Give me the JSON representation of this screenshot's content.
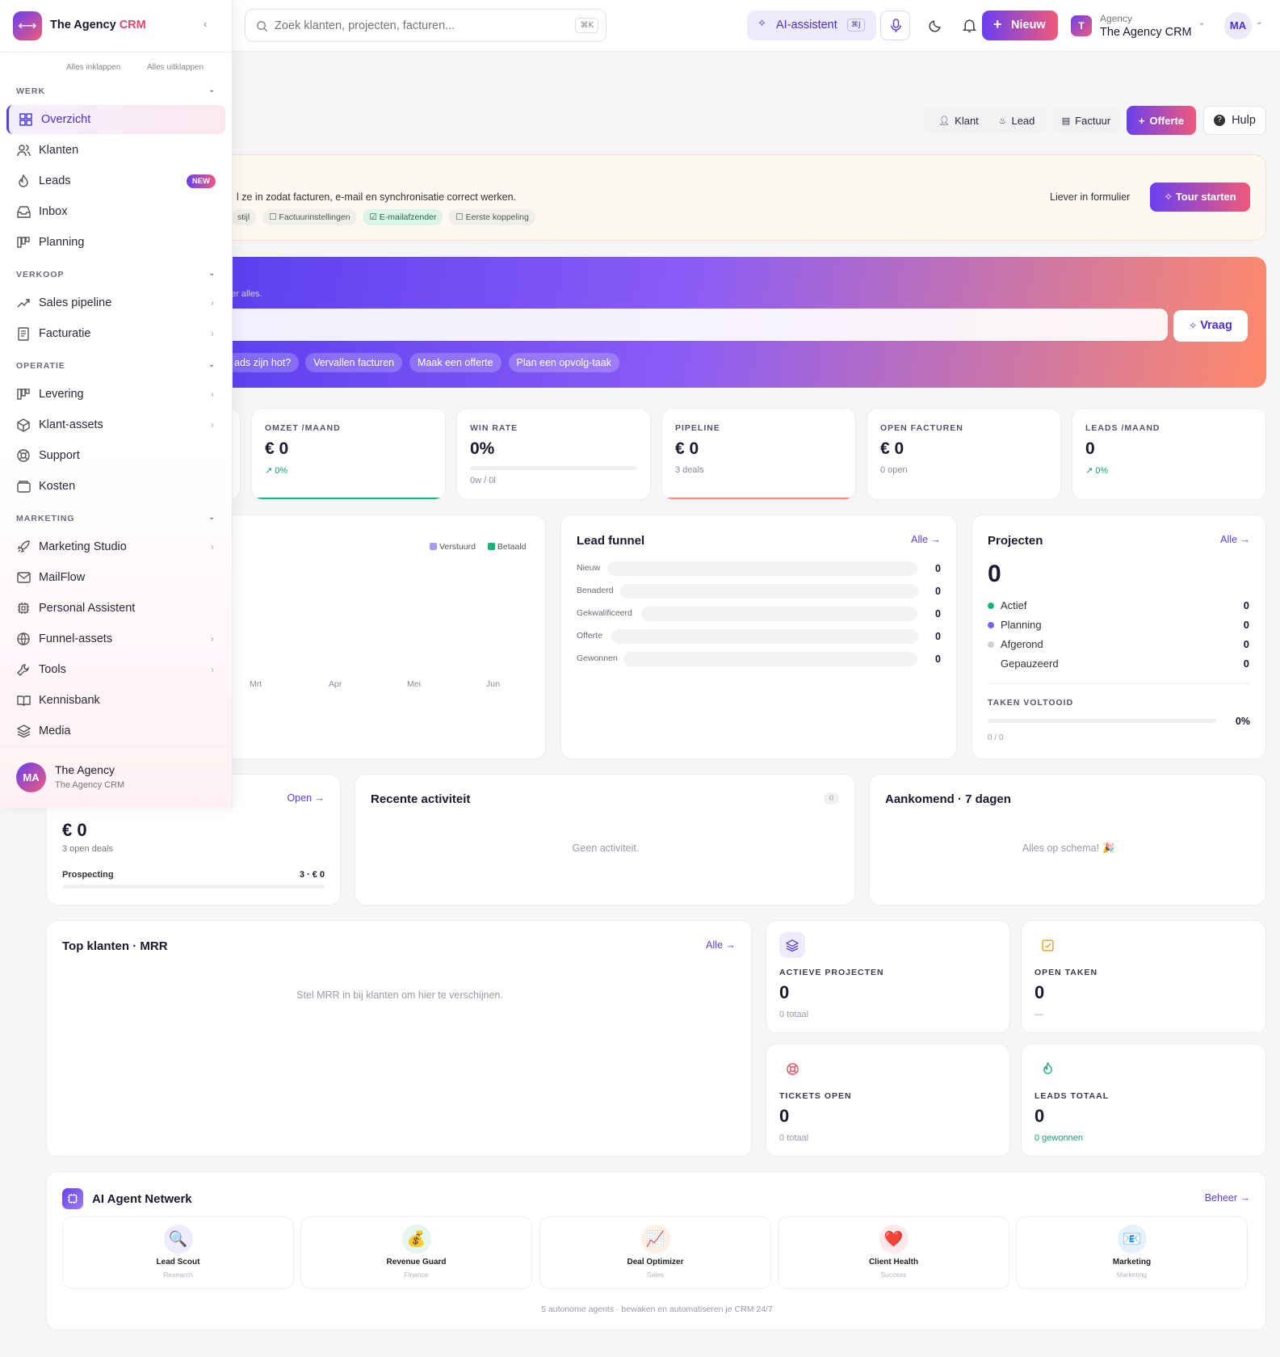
{
  "app": {
    "name": "The Agency",
    "name_accent": "CRM"
  },
  "search": {
    "placeholder": "Zoek klanten, projecten, facturen...",
    "shortcut": "⌘K"
  },
  "topbar": {
    "ai_label": "AI-assistent",
    "ai_shortcut": "⌘J",
    "new_label": "Nieuw",
    "workspace_label": "Agency",
    "workspace_name": "The Agency CRM",
    "workspace_initial": "T",
    "user_initials": "MA"
  },
  "sidebar": {
    "collapse_all": "Alles inklappen",
    "expand_all": "Alles uitklappen",
    "sections": {
      "werk": "WERK",
      "verkoop": "VERKOOP",
      "operatie": "OPERATIE",
      "marketing": "MARKETING"
    },
    "items": {
      "overzicht": "Overzicht",
      "klanten": "Klanten",
      "leads": "Leads",
      "leads_badge": "NEW",
      "inbox": "Inbox",
      "planning": "Planning",
      "sales_pipeline": "Sales pipeline",
      "facturatie": "Facturatie",
      "levering": "Levering",
      "klant_assets": "Klant-assets",
      "support": "Support",
      "kosten": "Kosten",
      "marketing_studio": "Marketing Studio",
      "mailflow": "MailFlow",
      "personal_assistent": "Personal Assistent",
      "funnel_assets": "Funnel-assets",
      "tools": "Tools",
      "kennisbank": "Kennisbank",
      "media": "Media"
    },
    "footer": {
      "initials": "MA",
      "name": "The Agency",
      "sub": "The Agency CRM"
    }
  },
  "quick_actions": {
    "klant": "Klant",
    "lead": "Lead",
    "factuur": "Factuur",
    "offerte": "Offerte",
    "hulp": "Hulp"
  },
  "onboarding": {
    "text": "l ze in zodat facturen, e-mail en synchronisatie correct werken.",
    "chips": [
      "stijl",
      "Factuurinstellingen",
      "E-mailafzender",
      "Eerste koppeling"
    ],
    "form_link": "Liever in formulier",
    "tour_button": "Tour starten"
  },
  "ai_banner": {
    "subtitle": "er alles.",
    "ask_button": "Vraag",
    "suggestions": [
      "ads zijn hot?",
      "Vervallen facturen",
      "Maak een offerte",
      "Plan een opvolg-taak"
    ]
  },
  "kpis": [
    {
      "label": "OMZET /MAAND",
      "value": "€ 0",
      "sub": "↗ 0%"
    },
    {
      "label": "WIN RATE",
      "value": "0%",
      "sub": "0w / 0l",
      "progress": 0
    },
    {
      "label": "PIPELINE",
      "value": "€ 0",
      "sub": "3 deals"
    },
    {
      "label": "OPEN FACTUREN",
      "value": "€ 0",
      "sub": "0 open"
    },
    {
      "label": "LEADS /MAAND",
      "value": "0",
      "sub": "↗ 0%"
    }
  ],
  "revenue_chart": {
    "legend": [
      "Verstuurd",
      "Betaald"
    ],
    "months": [
      "Mrt",
      "Apr",
      "Mei",
      "Jun"
    ],
    "colors": {
      "verstuurd": "#a99af5",
      "betaald": "#19b37a"
    }
  },
  "lead_funnel": {
    "title": "Lead funnel",
    "link": "Alle →",
    "stages": [
      {
        "label": "Nieuw",
        "count": "0"
      },
      {
        "label": "Benaderd",
        "count": "0"
      },
      {
        "label": "Gekwalificeerd",
        "count": "0"
      },
      {
        "label": "Offerte",
        "count": "0"
      },
      {
        "label": "Gewonnen",
        "count": "0"
      }
    ]
  },
  "projects": {
    "title": "Projecten",
    "link": "Alle →",
    "total": "0",
    "rows": [
      {
        "label": "Actief",
        "count": "0"
      },
      {
        "label": "Planning",
        "count": "0"
      },
      {
        "label": "Afgerond",
        "count": "0"
      },
      {
        "label": "Gepauzeerd",
        "count": "0"
      }
    ],
    "tasks_label": "TAKEN VOLTOOID",
    "tasks_pct": "0%",
    "tasks_count": "0 / 0"
  },
  "deals": {
    "link": "Open →",
    "value": "€ 0",
    "sub": "3 open deals",
    "stage_label": "Prospecting",
    "stage_value": "3 · € 0"
  },
  "activity": {
    "title": "Recente activiteit",
    "count": "0",
    "empty": "Geen activiteit."
  },
  "upcoming": {
    "title": "Aankomend · 7 dagen",
    "empty": "Alles op schema! 🎉"
  },
  "top_clients": {
    "title": "Top klanten · MRR",
    "link": "Alle →",
    "empty": "Stel MRR in bij klanten om hier te verschijnen."
  },
  "mini_stats": [
    {
      "label": "ACTIEVE PROJECTEN",
      "value": "0",
      "sub": "0 totaal"
    },
    {
      "label": "OPEN TAKEN",
      "value": "0",
      "sub": "—"
    },
    {
      "label": "TICKETS OPEN",
      "value": "0",
      "sub": "0 totaal"
    },
    {
      "label": "LEADS TOTAAL",
      "value": "0",
      "sub": "0 gewonnen"
    }
  ],
  "agents": {
    "title": "AI Agent Netwerk",
    "link": "Beheer →",
    "footer": "5 autonome agents · bewaken en automatiseren je CRM 24/7",
    "list": [
      {
        "name": "Lead Scout",
        "role": "Research",
        "icon": "🔍"
      },
      {
        "name": "Revenue Guard",
        "role": "Finance",
        "icon": "💰"
      },
      {
        "name": "Deal Optimizer",
        "role": "Sales",
        "icon": "📈"
      },
      {
        "name": "Client Health",
        "role": "Success",
        "icon": "❤️"
      },
      {
        "name": "Marketing",
        "role": "Marketing",
        "icon": "📧"
      }
    ]
  }
}
